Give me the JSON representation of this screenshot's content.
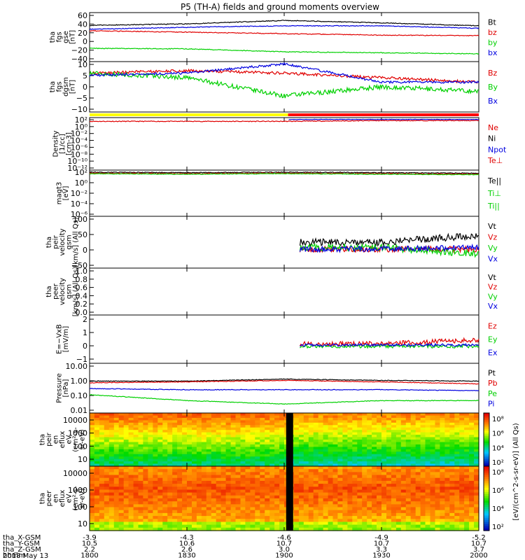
{
  "title": "P5 (TH-A) fields and ground moments overview",
  "date_label": "2018 May 13",
  "colors": {
    "black": "#000000",
    "red": "#e00000",
    "green": "#00d000",
    "blue": "#0000e0",
    "yellow": "#ffff00",
    "bar_red": "#ff0000"
  },
  "footer": {
    "rows": [
      {
        "label": "tha_X-GSM",
        "values": [
          "-3.9",
          "-4.3",
          "-4.6",
          "-4.9",
          "-5.2"
        ]
      },
      {
        "label": "tha_Y-GSM",
        "values": [
          "10.5",
          "10.6",
          "10.7",
          "10.7",
          "10.7"
        ]
      },
      {
        "label": "tha_Z-GSM",
        "values": [
          "2.2",
          "2.6",
          "3.0",
          "3.3",
          "3.7"
        ]
      },
      {
        "label": "hhmm",
        "values": [
          "1800",
          "1830",
          "1900",
          "1930",
          "2000"
        ]
      }
    ]
  },
  "chart_data": [
    {
      "type": "line",
      "panel": "fgs_gse",
      "ylabel": [
        "tha",
        "fgs",
        "gse",
        "[nT]"
      ],
      "ylim": [
        -40,
        60
      ],
      "yticks": [
        "60",
        "40",
        "20",
        "0",
        "−20",
        "−40"
      ],
      "x": [
        "1800",
        "1830",
        "1900",
        "1930",
        "2000"
      ],
      "series": [
        {
          "name": "Bt",
          "color": "#000000",
          "values": [
            34,
            37,
            44,
            39,
            33
          ]
        },
        {
          "name": "bz",
          "color": "#e00000",
          "values": [
            23,
            20,
            17,
            14,
            13
          ]
        },
        {
          "name": "by",
          "color": "#00d000",
          "values": [
            -13,
            -14,
            -20,
            -22,
            -24
          ]
        },
        {
          "name": "bx",
          "color": "#0000e0",
          "values": [
            26,
            30,
            33,
            33,
            28
          ]
        }
      ]
    },
    {
      "type": "line",
      "panel": "fgs_dgsm",
      "ylabel": [
        "tha",
        "fgs",
        "dgsm",
        "[nT]"
      ],
      "ylim": [
        -12,
        10
      ],
      "yticks": [
        "10",
        "5",
        "0",
        "−5",
        "−10"
      ],
      "x": [
        "1800",
        "1830",
        "1900",
        "1930",
        "2000"
      ],
      "series": [
        {
          "name": "Bz",
          "color": "#e00000",
          "values": [
            5,
            6,
            5,
            3,
            1
          ]
        },
        {
          "name": "By",
          "color": "#00d000",
          "values": [
            5,
            3,
            -5,
            -1,
            -3
          ]
        },
        {
          "name": "Bx",
          "color": "#0000e0",
          "values": [
            4,
            5,
            9,
            1,
            1
          ]
        }
      ]
    },
    {
      "type": "line",
      "panel": "density",
      "ylabel": [
        "Density",
        "[1/cc]",
        "[cm-3]"
      ],
      "ytick_labels": [
        "10²",
        "10⁰",
        "10⁻²",
        "10⁻⁴",
        "10⁻⁶",
        "10⁻⁸",
        "10⁻¹⁰",
        "10⁻¹²"
      ],
      "legend": [
        "Ne",
        "Ni",
        "Npot",
        "Te⊥"
      ],
      "legend_colors": [
        "#e00000",
        "#000000",
        "#0000e0",
        "#e00000"
      ]
    },
    {
      "type": "line",
      "panel": "temperature",
      "ylabel": [
        "magt3",
        "[eV]"
      ],
      "ytick_labels": [
        "10²",
        "10⁰",
        "10⁻²",
        "10⁻⁴",
        "10⁻⁶"
      ],
      "legend": [
        "Te||",
        "Ti⊥",
        "Ti||"
      ],
      "legend_colors": [
        "#000000",
        "#00d000",
        "#00d000"
      ]
    },
    {
      "type": "line",
      "panel": "peir_velocity",
      "ylabel": [
        "tha",
        "peir",
        "velocity",
        "gsm",
        "[km/s] (All Qs)"
      ],
      "ylim": [
        -50,
        100
      ],
      "yticks": [
        "100",
        "50",
        "0",
        "−50"
      ],
      "x": [
        "1800",
        "1830",
        "1900",
        "1930",
        "2000"
      ],
      "series": [
        {
          "name": "Vt",
          "color": "#000000",
          "values": [
            null,
            null,
            null,
            25,
            45
          ]
        },
        {
          "name": "Vz",
          "color": "#e00000",
          "values": [
            null,
            null,
            null,
            5,
            5
          ]
        },
        {
          "name": "Vy",
          "color": "#00d000",
          "values": [
            null,
            null,
            null,
            10,
            -10
          ]
        },
        {
          "name": "Vx",
          "color": "#0000e0",
          "values": [
            null,
            null,
            null,
            5,
            10
          ]
        }
      ]
    },
    {
      "type": "line",
      "panel": "peer_velocity",
      "ylabel": [
        "tha",
        "peer",
        "velocity",
        "gsm",
        "[km/s] (All Qs)"
      ],
      "ylim": [
        0,
        1
      ],
      "yticks": [
        "1.0",
        "0.8",
        "0.6",
        "0.4",
        "0.2",
        "0.0"
      ],
      "legend": [
        "Vt",
        "Vz",
        "Vy",
        "Vx"
      ],
      "legend_colors": [
        "#000000",
        "#e00000",
        "#00d000",
        "#0000e0"
      ]
    },
    {
      "type": "line",
      "panel": "efield",
      "ylabel": [
        "E=−VxB",
        "[mV/m]"
      ],
      "ylim": [
        -1.2,
        2.5
      ],
      "yticks": [
        "2",
        "1",
        "0",
        "−1"
      ],
      "x": [
        "1800",
        "1830",
        "1900",
        "1930",
        "2000"
      ],
      "series": [
        {
          "name": "Ez",
          "color": "#e00000",
          "values": [
            null,
            null,
            null,
            0.3,
            0.6
          ]
        },
        {
          "name": "Ey",
          "color": "#00d000",
          "values": [
            null,
            null,
            null,
            0.1,
            0.1
          ]
        },
        {
          "name": "Ex",
          "color": "#0000e0",
          "values": [
            null,
            null,
            null,
            0.2,
            0.2
          ]
        }
      ]
    },
    {
      "type": "line",
      "panel": "pressure",
      "ylabel": [
        "Pressure",
        "[nPa]"
      ],
      "yticks": [
        "10.00",
        "1.00",
        "0.10",
        "0.01"
      ],
      "x": [
        "1800",
        "1830",
        "1900",
        "1930",
        "2000"
      ],
      "series": [
        {
          "name": "Pt",
          "color": "#000000",
          "values": [
            0.9,
            0.9,
            1.2,
            1.0,
            0.9
          ]
        },
        {
          "name": "Pb",
          "color": "#e00000",
          "values": [
            0.7,
            0.8,
            1.0,
            0.8,
            0.6
          ]
        },
        {
          "name": "Pe",
          "color": "#00d000",
          "values": [
            0.12,
            0.05,
            0.03,
            0.05,
            0.05
          ]
        },
        {
          "name": "Pi",
          "color": "#0000e0",
          "values": [
            0.3,
            0.25,
            0.25,
            0.25,
            0.22
          ]
        }
      ]
    },
    {
      "type": "heatmap",
      "panel": "peir_en_eflux",
      "ylabel": [
        "tha",
        "peir",
        "en",
        "eflux",
        "eV",
        "(cm²-s-",
        "sr-eV)"
      ],
      "yticks": [
        "10000",
        "1000",
        "100",
        "10"
      ]
    },
    {
      "type": "heatmap",
      "panel": "peer_en_eflux",
      "ylabel": [
        "tha",
        "peer",
        "en",
        "eflux",
        "eV",
        "(cm²-s-",
        "sr-eV)"
      ],
      "yticks": [
        "10000",
        "1000",
        "100",
        "10"
      ]
    }
  ],
  "colorbars": [
    {
      "ticks": [
        "10⁸",
        "10⁶",
        "10⁴",
        "10²"
      ]
    },
    {
      "ticks": [
        "10⁸",
        "10⁶",
        "10⁴",
        "10²"
      ]
    }
  ],
  "colorbar_label": "[eV/(cm^2-s-sr-eV)] (All Qs)"
}
